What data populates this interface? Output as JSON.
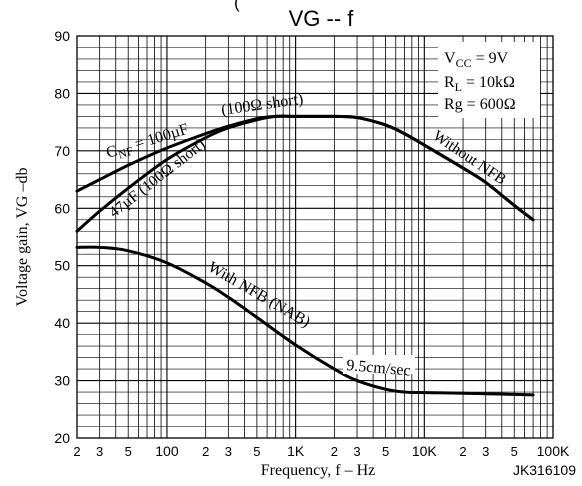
{
  "chart_data": {
    "type": "line",
    "title": "VG -- f",
    "top_fragment": "(",
    "xlabel": "Frequency, f – Hz",
    "ylabel": "Voltage gain, VG –db",
    "xscale": "log",
    "xlim": [
      20,
      100000
    ],
    "ylim": [
      20,
      90
    ],
    "grid": true,
    "x_ticks": [
      {
        "value": 20,
        "label": "2"
      },
      {
        "value": 30,
        "label": "3"
      },
      {
        "value": 50,
        "label": "5"
      },
      {
        "value": 100,
        "label": "100"
      },
      {
        "value": 200,
        "label": "2"
      },
      {
        "value": 300,
        "label": "3"
      },
      {
        "value": 500,
        "label": "5"
      },
      {
        "value": 1000,
        "label": "1K"
      },
      {
        "value": 2000,
        "label": "2"
      },
      {
        "value": 3000,
        "label": "3"
      },
      {
        "value": 5000,
        "label": "5"
      },
      {
        "value": 10000,
        "label": "10K"
      },
      {
        "value": 20000,
        "label": "2"
      },
      {
        "value": 30000,
        "label": "3"
      },
      {
        "value": 50000,
        "label": "5"
      },
      {
        "value": 100000,
        "label": "100K"
      }
    ],
    "y_ticks": [
      20,
      30,
      40,
      50,
      60,
      70,
      80,
      90
    ],
    "conditions": {
      "vcc": {
        "symbol": "V",
        "sub": "CC",
        "value": " = 9V"
      },
      "rl": {
        "symbol": "R",
        "sub": "L",
        "value": " = 10kΩ"
      },
      "rg": {
        "symbol": "Rg",
        "value": " = 600Ω"
      }
    },
    "series": [
      {
        "name": "CNF = 100µF (100Ω short)",
        "x": [
          20,
          30,
          50,
          100,
          200,
          300,
          500,
          700,
          1000,
          2000,
          3000,
          5000,
          7000,
          10000,
          20000,
          30000,
          50000,
          70000
        ],
        "values": [
          63,
          65,
          67.5,
          70.5,
          73,
          74.3,
          75.6,
          76,
          76,
          76,
          75.8,
          74.5,
          73,
          71,
          67,
          64.5,
          60.5,
          58
        ]
      },
      {
        "name": "47µF (100Ω short)",
        "x": [
          20,
          30,
          50,
          100,
          200,
          300,
          500,
          700,
          1000,
          2000,
          3000,
          5000,
          7000,
          10000,
          20000,
          30000,
          50000,
          70000
        ],
        "values": [
          56,
          59.5,
          63.5,
          68.5,
          72.3,
          74,
          75.4,
          76,
          76,
          76,
          75.8,
          74.5,
          73,
          71,
          67,
          64.5,
          60.5,
          58
        ]
      },
      {
        "name": "With NFB (NAB) 9.5cm/sec",
        "x": [
          20,
          30,
          50,
          100,
          200,
          300,
          500,
          1000,
          2000,
          3000,
          5000,
          7000,
          10000,
          20000,
          30000,
          50000,
          70000
        ],
        "values": [
          53.2,
          53.2,
          52.6,
          50.5,
          47,
          44.5,
          41,
          36.2,
          32,
          30,
          28.5,
          28,
          27.9,
          27.8,
          27.7,
          27.6,
          27.5
        ]
      }
    ],
    "curve_labels": {
      "cnf_prefix": "C",
      "cnf_sub": "NF",
      "cnf_rest": " = 100µF",
      "cnf_short": "(100Ω short)",
      "c47": "47µF (100Ω short)",
      "without_nfb": "Without NFB",
      "with_nfb": "With NFB (NAB)",
      "speed": "9.5cm/sec"
    },
    "code": "JK316109",
    "colors": {
      "line": "#000000",
      "grid": "#000000",
      "background": "#ffffff"
    }
  }
}
